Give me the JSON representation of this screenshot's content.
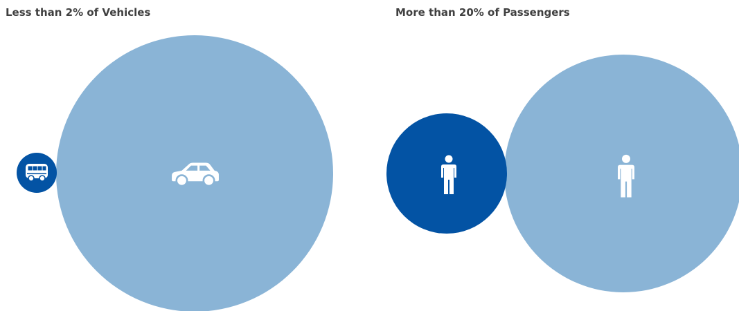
{
  "panels": [
    {
      "title": "Less than 2% of Vehicles"
    },
    {
      "title": "More than 20% of Passengers"
    }
  ],
  "colors": {
    "dark_blue": "#0353A4",
    "light_blue": "#8AB4D6",
    "icon": "#ffffff",
    "title_text": "#404040"
  },
  "chart_data": [
    {
      "type": "bubble",
      "title": "Less than 2% of Vehicles",
      "bubbles": [
        {
          "category": "Bus",
          "icon": "bus-icon",
          "relative_size": 0.02,
          "color": "#0353A4"
        },
        {
          "category": "Car",
          "icon": "car-icon",
          "relative_size": 1.0,
          "color": "#8AB4D6"
        }
      ]
    },
    {
      "type": "bubble",
      "title": "More than 20% of Passengers",
      "bubbles": [
        {
          "category": "Bus passengers",
          "icon": "person-icon",
          "relative_size": 0.26,
          "color": "#0353A4"
        },
        {
          "category": "Car passengers",
          "icon": "person-icon",
          "relative_size": 1.0,
          "color": "#8AB4D6"
        }
      ]
    }
  ]
}
